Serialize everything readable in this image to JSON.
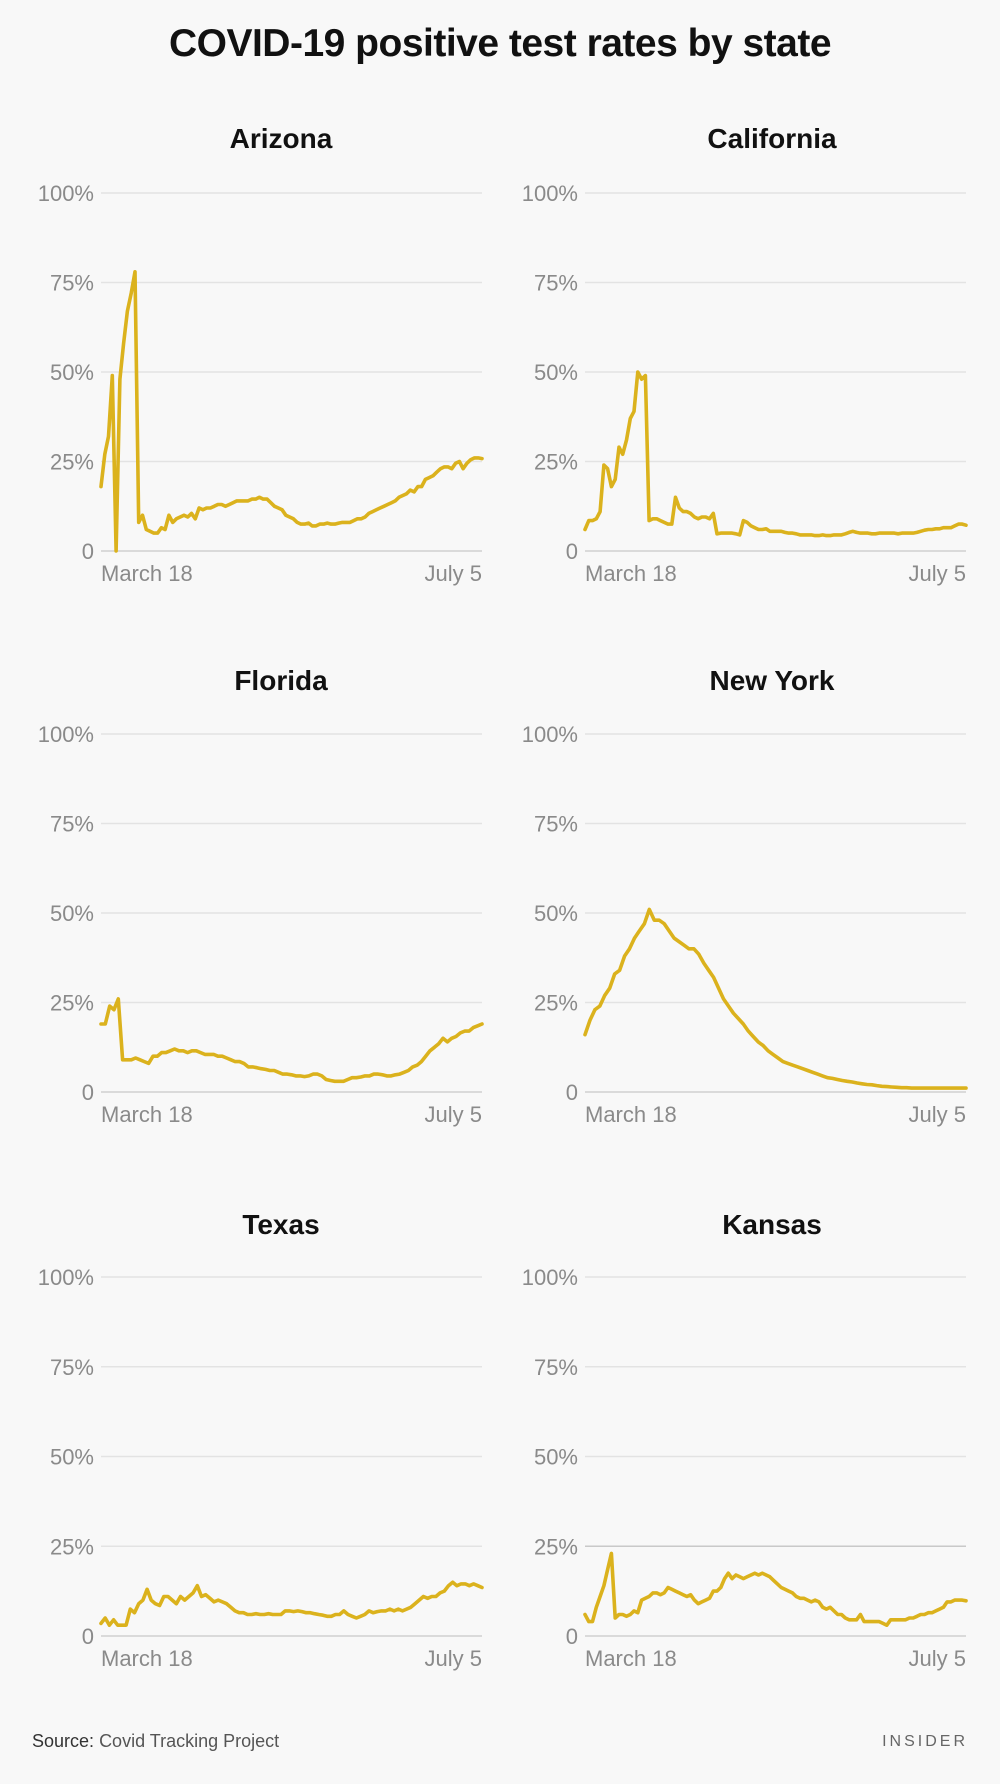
{
  "title": "COVID-19 positive test rates by state",
  "source_label": "Source:",
  "source_text": "Covid Tracking Project",
  "brand": "INSIDER",
  "colors": {
    "line": "#dbb21d",
    "highlight_grid": "#c9c9c9"
  },
  "chart_data": [
    {
      "type": "line",
      "title": "Arizona",
      "yticks": [
        "100%",
        "75%",
        "50%",
        "25%",
        "0"
      ],
      "ylim": [
        0,
        100
      ],
      "xticks": [
        "March 18",
        "July 5"
      ],
      "values": [
        18,
        27,
        32,
        49,
        0,
        48,
        58,
        67,
        72,
        78,
        8,
        10,
        6,
        5.5,
        5,
        5,
        6.5,
        6,
        10,
        8,
        9,
        9.5,
        10,
        9.5,
        10.5,
        9,
        12,
        11.5,
        12,
        12,
        12.5,
        13,
        13,
        12.5,
        13,
        13.5,
        14,
        14,
        14,
        14,
        14.5,
        14.5,
        15,
        14.5,
        14.5,
        13.5,
        12.5,
        12,
        11.5,
        10,
        9.5,
        9,
        8,
        7.5,
        7.5,
        7.8,
        7,
        7,
        7.5,
        7.5,
        7.8,
        7.5,
        7.5,
        7.8,
        8,
        8,
        8,
        8.5,
        9,
        9,
        9.5,
        10.5,
        11,
        11.5,
        12,
        12.5,
        13,
        13.5,
        14,
        15,
        15.5,
        16,
        17,
        16.5,
        18,
        18,
        20,
        20.5,
        21,
        22,
        23,
        23.5,
        23.5,
        23,
        24.5,
        25,
        23,
        24.5,
        25.5,
        26,
        26,
        25.8
      ]
    },
    {
      "type": "line",
      "title": "California",
      "yticks": [
        "100%",
        "75%",
        "50%",
        "25%",
        "0"
      ],
      "ylim": [
        0,
        100
      ],
      "xticks": [
        "March 18",
        "July 5"
      ],
      "values": [
        6,
        8.5,
        8.5,
        9,
        11,
        24,
        23,
        18,
        20,
        29,
        27,
        31,
        37,
        39,
        50,
        48,
        49,
        8.5,
        9,
        9,
        8.5,
        8,
        7.5,
        7.5,
        15,
        12,
        11,
        11,
        10.5,
        9.5,
        9,
        9.5,
        9.5,
        9,
        10.5,
        4.8,
        5,
        5,
        5,
        5,
        4.8,
        4.5,
        8.5,
        8,
        7,
        6.5,
        6,
        6,
        6.2,
        5.5,
        5.5,
        5.5,
        5.5,
        5.2,
        5,
        5,
        4.8,
        4.5,
        4.5,
        4.5,
        4.5,
        4.3,
        4.3,
        4.5,
        4.3,
        4.3,
        4.5,
        4.5,
        4.5,
        4.8,
        5.2,
        5.5,
        5.2,
        5,
        5,
        5,
        4.8,
        4.8,
        5,
        5,
        5,
        5,
        5,
        4.8,
        5,
        5,
        5,
        5,
        5.2,
        5.5,
        5.8,
        6,
        6,
        6.2,
        6.2,
        6.5,
        6.5,
        6.5,
        7,
        7.5,
        7.5,
        7.2
      ]
    },
    {
      "type": "line",
      "title": "Florida",
      "yticks": [
        "100%",
        "75%",
        "50%",
        "25%",
        "0"
      ],
      "ylim": [
        0,
        100
      ],
      "xticks": [
        "March 18",
        "July 5"
      ],
      "values": [
        19,
        19,
        24,
        23,
        26,
        9,
        9,
        9,
        9.5,
        9,
        8.5,
        8,
        10,
        10,
        11,
        11,
        11.5,
        12,
        11.5,
        11.5,
        11,
        11.5,
        11.5,
        11,
        10.5,
        10.5,
        10.5,
        10,
        10,
        9.5,
        9,
        8.5,
        8.5,
        8,
        7,
        7,
        6.8,
        6.5,
        6.3,
        6,
        6,
        5.5,
        5,
        5,
        4.8,
        4.5,
        4.5,
        4.3,
        4.5,
        5,
        5,
        4.5,
        3.5,
        3.2,
        3,
        3,
        3,
        3.5,
        4,
        4,
        4.2,
        4.5,
        4.5,
        5,
        5,
        4.8,
        4.5,
        4.5,
        4.8,
        5,
        5.5,
        6,
        7,
        7.5,
        8.5,
        10,
        11.5,
        12.5,
        13.5,
        15,
        14,
        15,
        15.5,
        16.5,
        17,
        17,
        18,
        18.5,
        19
      ]
    },
    {
      "type": "line",
      "title": "New York",
      "yticks": [
        "100%",
        "75%",
        "50%",
        "25%",
        "0"
      ],
      "ylim": [
        0,
        100
      ],
      "xticks": [
        "March 18",
        "July 5"
      ],
      "values": [
        16,
        20,
        23,
        24,
        27,
        29,
        33,
        34,
        38,
        40,
        43,
        45,
        47,
        51,
        48,
        48,
        47,
        45,
        43,
        42,
        41,
        40,
        40,
        38.5,
        36,
        34,
        32,
        29,
        26,
        24,
        22,
        20.5,
        19,
        17,
        15.5,
        14,
        13,
        11.5,
        10.5,
        9.5,
        8.5,
        8,
        7.5,
        7,
        6.5,
        6,
        5.5,
        5,
        4.5,
        4,
        3.8,
        3.5,
        3.2,
        3,
        2.8,
        2.5,
        2.3,
        2.1,
        2,
        1.8,
        1.6,
        1.5,
        1.4,
        1.3,
        1.2,
        1.2,
        1.1,
        1.1,
        1.1,
        1.1,
        1.1,
        1.1,
        1.1,
        1.1,
        1.1,
        1.1,
        1.1,
        1.1
      ]
    },
    {
      "type": "line",
      "title": "Texas",
      "yticks": [
        "100%",
        "75%",
        "50%",
        "25%",
        "0"
      ],
      "ylim": [
        0,
        100
      ],
      "xticks": [
        "March 18",
        "July 5"
      ],
      "values": [
        3.5,
        5,
        3,
        4.5,
        3,
        3,
        3,
        7.5,
        6.5,
        9,
        10,
        13,
        10,
        9,
        8.5,
        11,
        11,
        10,
        9,
        11,
        10,
        11,
        12,
        14,
        11,
        11.5,
        10.5,
        9.5,
        10,
        9.5,
        9,
        8,
        7,
        6.5,
        6.5,
        6,
        6,
        6.2,
        6,
        6,
        6.2,
        6,
        6,
        6,
        7,
        7,
        6.8,
        7,
        6.8,
        6.5,
        6.5,
        6.2,
        6,
        5.8,
        5.5,
        5.5,
        6,
        6,
        7,
        6,
        5.5,
        5,
        5.5,
        6,
        7,
        6.5,
        6.8,
        7,
        7,
        7.5,
        7,
        7.5,
        7,
        7.5,
        8,
        9,
        10,
        11,
        10.5,
        11,
        11,
        12,
        12.5,
        14,
        15,
        14,
        14.5,
        14.5,
        14,
        14.5,
        14,
        13.5
      ]
    },
    {
      "type": "line",
      "title": "Kansas",
      "yticks": [
        "100%",
        "75%",
        "50%",
        "25%",
        "0"
      ],
      "ylim": [
        0,
        100
      ],
      "xticks": [
        "March 18",
        "July 5"
      ],
      "values": [
        6,
        4,
        4,
        8,
        11,
        14,
        18.5,
        23,
        5,
        6,
        6,
        5.5,
        6,
        7,
        6.5,
        10,
        10.5,
        11,
        12,
        12,
        11.5,
        12,
        13.5,
        13,
        12.5,
        12,
        11.5,
        11,
        11.5,
        10,
        9,
        9.5,
        10,
        10.5,
        12.5,
        12.5,
        13.5,
        16,
        17.5,
        16,
        17,
        16.5,
        16,
        16.5,
        17,
        17.5,
        17,
        17.5,
        17,
        16.5,
        15.5,
        14.5,
        13.5,
        13,
        12.5,
        12,
        11,
        10.5,
        10.5,
        10,
        9.5,
        10,
        9.5,
        8,
        7.5,
        8,
        7,
        6,
        6,
        5,
        4.5,
        4.5,
        4.5,
        6,
        4,
        4,
        4,
        4,
        4,
        3.5,
        3,
        4.5,
        4.5,
        4.5,
        4.5,
        4.5,
        5,
        5,
        5.5,
        6,
        6,
        6.5,
        6.5,
        7,
        7.5,
        8,
        9.5,
        9.5,
        10,
        10,
        10,
        9.8
      ]
    }
  ]
}
